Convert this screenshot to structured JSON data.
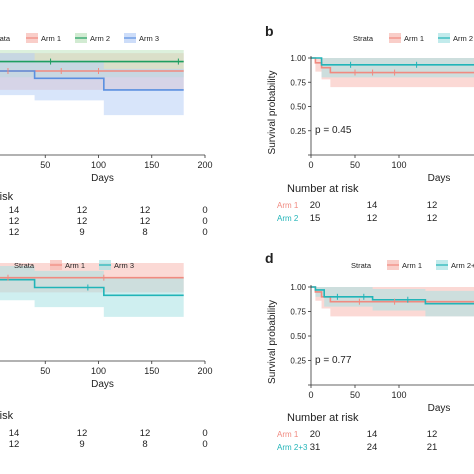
{
  "palette": {
    "arm1": "#F08A80",
    "arm2": "#1E9E60",
    "arm3": "#5A8FE0",
    "arm2_teal": "#21B4B8",
    "fill_arm1": "#F7B9B2",
    "fill_arm2": "#BFE3BF",
    "fill_arm3": "#B8CFF6",
    "fill_teal": "#A8E2E4",
    "fill_olive": "#C9CCA8",
    "axis": "#333333",
    "text": "#222222"
  },
  "chart_data": [
    {
      "panel": "a",
      "type": "line",
      "subtype": "kaplan-meier",
      "visible_panel_label": "",
      "legend": {
        "title": "Strata",
        "placement": "top",
        "entries": [
          "Arm 1",
          "Arm 2",
          "Arm 3"
        ]
      },
      "xlabel": "Days",
      "ylabel": "",
      "xticks": [
        "",
        "50",
        "100",
        "150",
        "200"
      ],
      "xlim": [
        0,
        200
      ],
      "ylim": [
        0,
        1
      ],
      "series": [
        {
          "name": "Arm 1",
          "color_key": "arm1",
          "steps": [
            [
              0,
              0.8
            ],
            [
              180,
              0.8
            ]
          ],
          "band": [
            [
              0,
              0.62,
              0.97
            ],
            [
              180,
              0.62,
              0.97
            ]
          ]
        },
        {
          "name": "Arm 2",
          "color_key": "arm2",
          "steps": [
            [
              0,
              0.89
            ],
            [
              180,
              0.89
            ]
          ],
          "band": [
            [
              0,
              0.74,
              1.0
            ],
            [
              180,
              0.74,
              1.0
            ]
          ]
        },
        {
          "name": "Arm 3",
          "color_key": "arm3",
          "steps": [
            [
              0,
              0.8
            ],
            [
              40,
              0.73
            ],
            [
              105,
              0.62
            ],
            [
              180,
              0.62
            ]
          ],
          "band": [
            [
              0,
              0.57,
              0.97
            ],
            [
              40,
              0.52,
              0.9
            ],
            [
              105,
              0.38,
              0.82
            ],
            [
              180,
              0.38,
              0.82
            ]
          ]
        }
      ],
      "censors": [
        {
          "color_key": "arm1",
          "x": [
            15,
            65,
            100
          ]
        },
        {
          "color_key": "arm2",
          "x": [
            55,
            175
          ]
        }
      ],
      "risk_table": {
        "title": "risk",
        "rows": [
          {
            "label": "",
            "color_key": "arm1",
            "values": [
              "14",
              "12",
              "12",
              "0"
            ]
          },
          {
            "label": "",
            "color_key": "arm2",
            "values": [
              "12",
              "12",
              "12",
              "0"
            ]
          },
          {
            "label": "",
            "color_key": "arm3",
            "values": [
              "12",
              "9",
              "8",
              "0"
            ]
          }
        ]
      }
    },
    {
      "panel": "b",
      "type": "line",
      "subtype": "kaplan-meier",
      "visible_panel_label": "b",
      "legend": {
        "title": "Strata",
        "placement": "top",
        "entries": [
          "Arm 1",
          "Arm 2"
        ]
      },
      "xlabel": "Days",
      "ylabel": "Survival probability",
      "yticks": [
        "0.00",
        "0.25",
        "0.50",
        "0.75",
        "1.00"
      ],
      "xticks": [
        "0",
        "50",
        "100"
      ],
      "xlim": [
        0,
        200
      ],
      "ylim": [
        0,
        1
      ],
      "pvalue": "p = 0.45",
      "series": [
        {
          "name": "Arm 1",
          "color_key": "arm1",
          "steps": [
            [
              0,
              1.0
            ],
            [
              5,
              0.95
            ],
            [
              12,
              0.9
            ],
            [
              22,
              0.85
            ],
            [
              200,
              0.85
            ]
          ],
          "band": [
            [
              0,
              1.0,
              1.0
            ],
            [
              5,
              0.86,
              1.0
            ],
            [
              12,
              0.78,
              1.0
            ],
            [
              22,
              0.7,
              1.0
            ],
            [
              200,
              0.7,
              1.0
            ]
          ]
        },
        {
          "name": "Arm 2",
          "color_key": "arm2_teal",
          "steps": [
            [
              0,
              1.0
            ],
            [
              12,
              0.93
            ],
            [
              200,
              0.93
            ]
          ],
          "band": [
            [
              0,
              1.0,
              1.0
            ],
            [
              12,
              0.8,
              1.0
            ],
            [
              200,
              0.8,
              1.0
            ]
          ]
        }
      ],
      "censors": [
        {
          "color_key": "arm1",
          "x": [
            50,
            70,
            95
          ]
        },
        {
          "color_key": "arm2_teal",
          "x": [
            45,
            120
          ]
        }
      ],
      "risk_table": {
        "title": "Number at risk",
        "rows": [
          {
            "label": "Arm 1",
            "color_key": "arm1",
            "values": [
              "20",
              "14",
              "12"
            ]
          },
          {
            "label": "Arm 2",
            "color_key": "arm2_teal",
            "values": [
              "15",
              "12",
              "12"
            ]
          }
        ]
      }
    },
    {
      "panel": "c",
      "type": "line",
      "subtype": "kaplan-meier",
      "visible_panel_label": "",
      "legend": {
        "title": "Strata",
        "placement": "top",
        "entries": [
          "Arm 1",
          "Arm 3"
        ]
      },
      "xlabel": "Days",
      "ylabel": "",
      "xticks": [
        "",
        "50",
        "100",
        "150",
        "200"
      ],
      "xlim": [
        0,
        200
      ],
      "ylim": [
        0,
        1
      ],
      "series": [
        {
          "name": "Arm 1",
          "color_key": "arm1",
          "steps": [
            [
              0,
              0.85
            ],
            [
              180,
              0.85
            ]
          ],
          "band": [
            [
              0,
              0.7,
              1.0
            ],
            [
              180,
              0.7,
              1.0
            ]
          ]
        },
        {
          "name": "Arm 3",
          "color_key": "arm2_teal",
          "steps": [
            [
              0,
              0.83
            ],
            [
              40,
              0.75
            ],
            [
              105,
              0.67
            ],
            [
              180,
              0.67
            ]
          ],
          "band": [
            [
              0,
              0.62,
              0.97
            ],
            [
              40,
              0.55,
              0.92
            ],
            [
              105,
              0.45,
              0.85
            ],
            [
              180,
              0.45,
              0.85
            ]
          ]
        }
      ],
      "censors": [
        {
          "color_key": "arm1",
          "x": [
            15,
            105
          ]
        },
        {
          "color_key": "arm2_teal",
          "x": [
            90
          ]
        }
      ],
      "risk_table": {
        "title": "risk",
        "rows": [
          {
            "label": "",
            "color_key": "arm1",
            "values": [
              "14",
              "12",
              "12",
              "0"
            ]
          },
          {
            "label": "",
            "color_key": "arm2_teal",
            "values": [
              "12",
              "9",
              "8",
              "0"
            ]
          }
        ]
      }
    },
    {
      "panel": "d",
      "type": "line",
      "subtype": "kaplan-meier",
      "visible_panel_label": "d",
      "legend": {
        "title": "Strata",
        "placement": "top",
        "entries": [
          "Arm 1",
          "Arm 2+"
        ]
      },
      "xlabel": "Days",
      "ylabel": "Survival probability",
      "yticks": [
        "0.00",
        "0.25",
        "0.50",
        "0.75",
        "1.00"
      ],
      "xticks": [
        "0",
        "50",
        "100"
      ],
      "xlim": [
        0,
        200
      ],
      "ylim": [
        0,
        1
      ],
      "pvalue": "p = 0.77",
      "series": [
        {
          "name": "Arm 1",
          "color_key": "arm1",
          "steps": [
            [
              0,
              1.0
            ],
            [
              5,
              0.95
            ],
            [
              12,
              0.9
            ],
            [
              22,
              0.85
            ],
            [
              200,
              0.85
            ]
          ],
          "band": [
            [
              0,
              1.0,
              1.0
            ],
            [
              5,
              0.86,
              1.0
            ],
            [
              12,
              0.78,
              1.0
            ],
            [
              22,
              0.7,
              1.0
            ],
            [
              200,
              0.7,
              1.0
            ]
          ]
        },
        {
          "name": "Arm 2+3",
          "color_key": "arm2_teal",
          "steps": [
            [
              0,
              1.0
            ],
            [
              5,
              0.97
            ],
            [
              15,
              0.9
            ],
            [
              70,
              0.87
            ],
            [
              130,
              0.83
            ],
            [
              200,
              0.83
            ]
          ],
          "band": [
            [
              0,
              1.0,
              1.0
            ],
            [
              5,
              0.9,
              1.0
            ],
            [
              15,
              0.8,
              1.0
            ],
            [
              70,
              0.76,
              0.98
            ],
            [
              130,
              0.7,
              0.96
            ],
            [
              200,
              0.7,
              0.96
            ]
          ]
        }
      ],
      "censors": [
        {
          "color_key": "arm1",
          "x": [
            55,
            95
          ]
        },
        {
          "color_key": "arm2_teal",
          "x": [
            30,
            60,
            110
          ]
        }
      ],
      "risk_table": {
        "title": "Number at risk",
        "rows": [
          {
            "label": "Arm 1",
            "color_key": "arm1",
            "values": [
              "20",
              "14",
              "12"
            ]
          },
          {
            "label": "Arm 2+3",
            "color_key": "arm2_teal",
            "values": [
              "31",
              "24",
              "21"
            ]
          }
        ]
      }
    }
  ]
}
